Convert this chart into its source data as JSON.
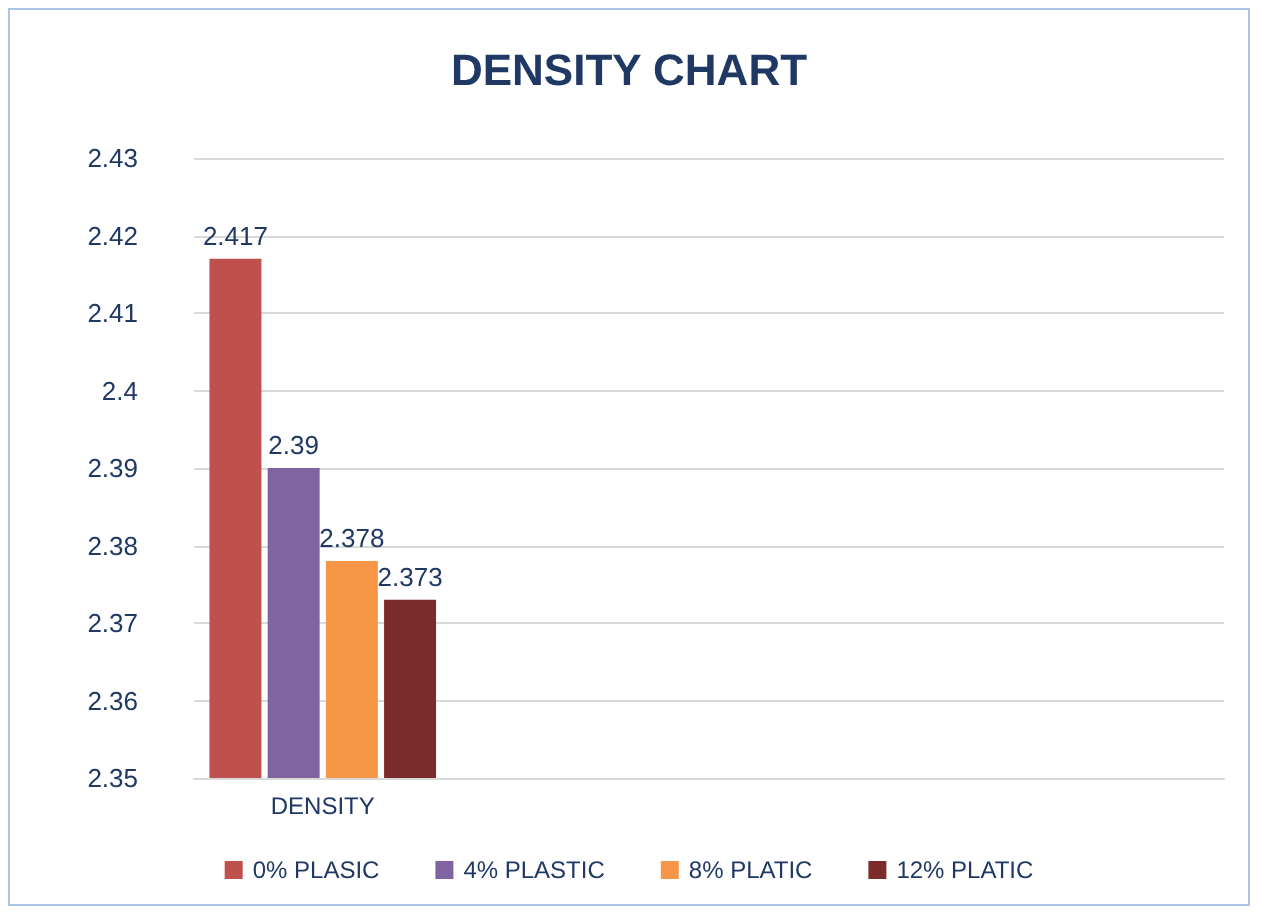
{
  "chart_data": {
    "type": "bar",
    "title": "DENSITY CHART",
    "categories": [
      "DENSITY",
      null,
      null,
      null
    ],
    "series": [
      {
        "name": "0% PLASIC",
        "color": "#c0504d",
        "values": [
          2.417,
          null,
          null,
          null
        ]
      },
      {
        "name": "4% PLASTIC",
        "color": "#8064a2",
        "values": [
          2.39,
          null,
          null,
          null
        ]
      },
      {
        "name": "8% PLATIC",
        "color": "#f79646",
        "values": [
          2.378,
          null,
          null,
          null
        ]
      },
      {
        "name": "12% PLATIC",
        "color": "#7b2c2a",
        "values": [
          2.373,
          null,
          null,
          null
        ]
      }
    ],
    "ylim": [
      2.35,
      2.43
    ],
    "yticks": [
      2.35,
      2.36,
      2.37,
      2.38,
      2.39,
      2.4,
      2.41,
      2.42,
      2.43
    ],
    "grid": "y",
    "legend": "bottom",
    "data_labels": true
  }
}
